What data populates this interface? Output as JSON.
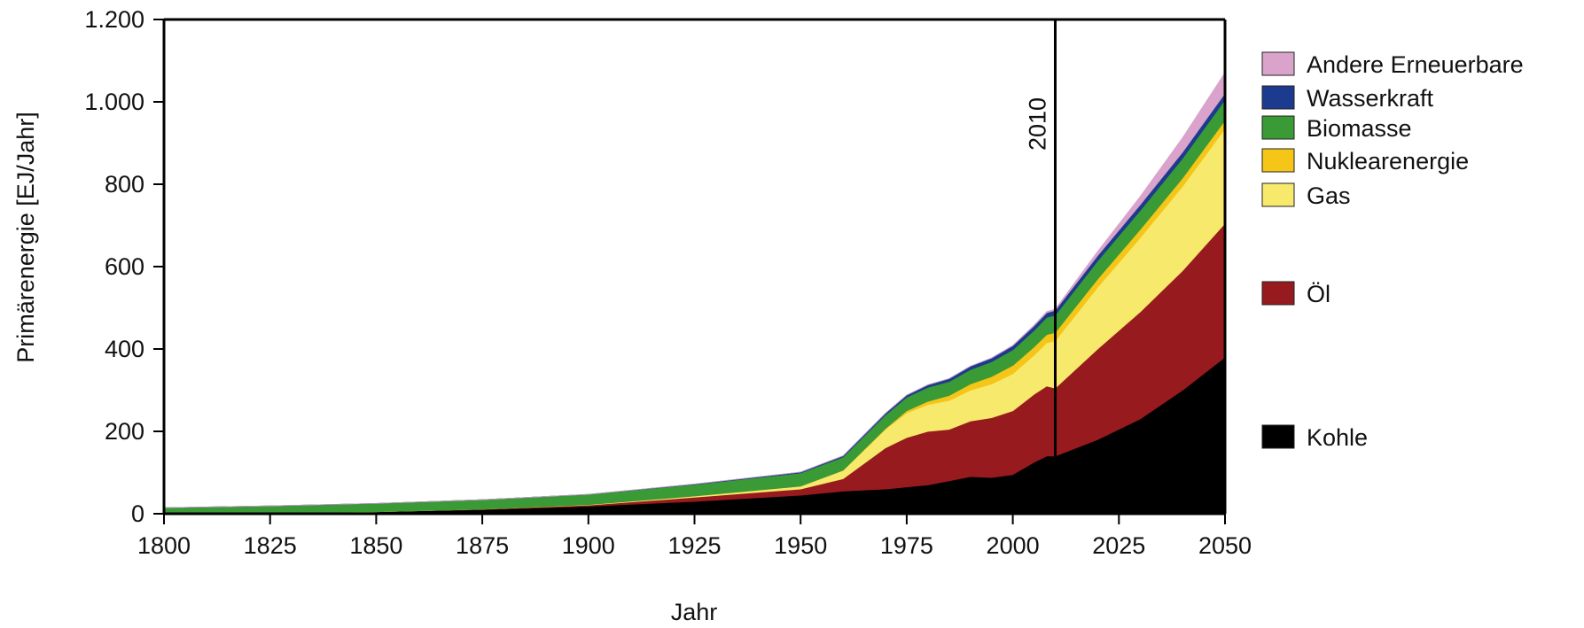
{
  "chart_data": {
    "type": "area",
    "stacked": true,
    "xlabel": "Jahr",
    "ylabel": "Primärenergie [EJ/Jahr]",
    "xlim": [
      1800,
      2050
    ],
    "ylim": [
      0,
      1200
    ],
    "xticks": [
      1800,
      1825,
      1850,
      1875,
      1900,
      1925,
      1950,
      1975,
      2000,
      2025,
      2050
    ],
    "yticks": [
      0,
      200,
      400,
      600,
      800,
      1000,
      1200
    ],
    "ytick_labels": [
      "0",
      "200",
      "400",
      "600",
      "800",
      "1.000",
      "1.200"
    ],
    "grid": false,
    "legend_position": "right",
    "marker": {
      "x": 2010,
      "label": "2010"
    },
    "x": [
      1800,
      1825,
      1850,
      1875,
      1900,
      1925,
      1950,
      1960,
      1970,
      1975,
      1980,
      1985,
      1990,
      1995,
      2000,
      2005,
      2008,
      2010,
      2020,
      2030,
      2040,
      2050
    ],
    "series": [
      {
        "name": "Kohle",
        "color": "#000000",
        "values": [
          0.5,
          2,
          5,
          10,
          18,
          30,
          45,
          55,
          60,
          65,
          70,
          80,
          90,
          88,
          95,
          125,
          140,
          140,
          180,
          230,
          300,
          380
        ]
      },
      {
        "name": "Öl",
        "color": "#971a1e",
        "values": [
          0,
          0,
          0,
          1,
          3,
          10,
          15,
          30,
          100,
          120,
          130,
          125,
          135,
          145,
          155,
          165,
          170,
          165,
          220,
          260,
          290,
          325
        ]
      },
      {
        "name": "Gas",
        "color": "#f7e96b",
        "values": [
          0,
          0,
          0,
          0,
          1,
          3,
          7,
          20,
          45,
          60,
          65,
          70,
          75,
          82,
          90,
          95,
          105,
          115,
          150,
          180,
          205,
          230
        ]
      },
      {
        "name": "Nuklearenergie",
        "color": "#f5c518",
        "values": [
          0,
          0,
          0,
          0,
          0,
          0,
          0,
          0.5,
          2,
          5,
          8,
          12,
          15,
          18,
          20,
          20,
          20,
          20,
          20,
          20,
          20,
          20
        ]
      },
      {
        "name": "Biomasse",
        "color": "#3a9a36",
        "values": [
          14,
          17,
          20,
          23,
          25,
          28,
          32,
          32,
          33,
          33,
          34,
          34,
          35,
          36,
          38,
          40,
          42,
          42,
          44,
          46,
          48,
          50
        ]
      },
      {
        "name": "Wasserkraft",
        "color": "#1c3b8f",
        "values": [
          0,
          0,
          0,
          0,
          0,
          1,
          2,
          3,
          4,
          5,
          6,
          7,
          8,
          9,
          10,
          11,
          11,
          12,
          13,
          14,
          15,
          16
        ]
      },
      {
        "name": "Andere Erneuerbare",
        "color": "#d9a3cc",
        "values": [
          0,
          0,
          0,
          0,
          0,
          0,
          0,
          0,
          0,
          0,
          0,
          0,
          0,
          0.5,
          1,
          2,
          3,
          3,
          10,
          20,
          35,
          50
        ]
      }
    ],
    "legend": [
      {
        "name": "Andere Erneuerbare",
        "color": "#d9a3cc"
      },
      {
        "name": "Wasserkraft",
        "color": "#1c3b8f"
      },
      {
        "name": "Biomasse",
        "color": "#3a9a36"
      },
      {
        "name": "Nuklearenergie",
        "color": "#f5c518"
      },
      {
        "name": "Gas",
        "color": "#f7e96b"
      },
      {
        "name": "Öl",
        "color": "#971a1e"
      },
      {
        "name": "Kohle",
        "color": "#000000"
      }
    ]
  }
}
